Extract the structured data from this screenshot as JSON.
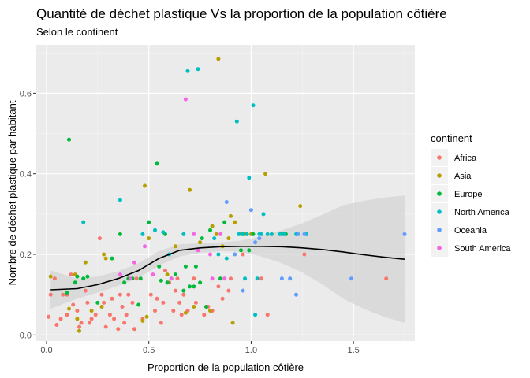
{
  "chart_data": {
    "type": "scatter",
    "title": "Quantité de déchet plastique Vs la proportion de la population côtière",
    "subtitle": "Selon le continent",
    "xlabel": "Proportion de la population côtière",
    "ylabel": "Nombre de déchet plastique par habitant",
    "xlim": [
      -0.05,
      1.8
    ],
    "ylim": [
      -0.015,
      0.72
    ],
    "x_ticks": [
      0.0,
      0.5,
      1.0,
      1.5
    ],
    "x_tick_labels": [
      "0.0",
      "0.5",
      "1.0",
      "1.5"
    ],
    "y_ticks": [
      0.0,
      0.2,
      0.4,
      0.6
    ],
    "y_tick_labels": [
      "0.0",
      "0.2",
      "0.4",
      "0.6"
    ],
    "grid": true,
    "legend": {
      "title": "continent",
      "placement": "right",
      "entries": [
        "Africa",
        "Asia",
        "Europe",
        "North America",
        "Oceania",
        "South America"
      ]
    },
    "colors": {
      "Africa": "#F8766D",
      "Asia": "#B79F00",
      "Europe": "#00BA38",
      "North America": "#00BFC4",
      "Oceania": "#619CFF",
      "South America": "#F564E3",
      "smooth": "#000000",
      "ribbon": "#cfcfcf",
      "panel": "#ebebeb"
    },
    "series": [
      {
        "name": "Africa",
        "points": [
          [
            0.01,
            0.045
          ],
          [
            0.02,
            0.1
          ],
          [
            0.04,
            0.14
          ],
          [
            0.05,
            0.025
          ],
          [
            0.07,
            0.04
          ],
          [
            0.08,
            0.1
          ],
          [
            0.1,
            0.05
          ],
          [
            0.1,
            0.1
          ],
          [
            0.12,
            0.15
          ],
          [
            0.13,
            0.075
          ],
          [
            0.15,
            0.06
          ],
          [
            0.16,
            0.02
          ],
          [
            0.17,
            0.03
          ],
          [
            0.19,
            0.11
          ],
          [
            0.2,
            0.08
          ],
          [
            0.21,
            0.03
          ],
          [
            0.22,
            0.04
          ],
          [
            0.24,
            0.05
          ],
          [
            0.26,
            0.24
          ],
          [
            0.27,
            0.1
          ],
          [
            0.28,
            0.08
          ],
          [
            0.29,
            0.02
          ],
          [
            0.31,
            0.05
          ],
          [
            0.32,
            0.09
          ],
          [
            0.33,
            0.04
          ],
          [
            0.35,
            0.015
          ],
          [
            0.36,
            0.1
          ],
          [
            0.37,
            0.07
          ],
          [
            0.38,
            0.03
          ],
          [
            0.39,
            0.05
          ],
          [
            0.4,
            0.1
          ],
          [
            0.42,
            0.08
          ],
          [
            0.43,
            0.015
          ],
          [
            0.44,
            0.14
          ],
          [
            0.47,
            0.04
          ],
          [
            0.51,
            0.1
          ],
          [
            0.53,
            0.06
          ],
          [
            0.54,
            0.09
          ],
          [
            0.56,
            0.03
          ],
          [
            0.57,
            0.08
          ],
          [
            0.58,
            0.16
          ],
          [
            0.6,
            0.13
          ],
          [
            0.62,
            0.06
          ],
          [
            0.63,
            0.11
          ],
          [
            0.64,
            0.14
          ],
          [
            0.65,
            0.08
          ],
          [
            0.66,
            0.05
          ],
          [
            0.67,
            0.1
          ],
          [
            0.69,
            0.06
          ],
          [
            0.72,
            0.14
          ],
          [
            0.73,
            0.08
          ],
          [
            0.77,
            0.05
          ],
          [
            0.79,
            0.07
          ],
          [
            0.81,
            0.06
          ],
          [
            0.84,
            0.12
          ],
          [
            0.86,
            0.09
          ],
          [
            0.89,
            0.11
          ],
          [
            0.9,
            0.14
          ],
          [
            0.96,
            0.2
          ],
          [
            1.05,
            0.14
          ],
          [
            1.08,
            0.05
          ],
          [
            1.26,
            0.2
          ],
          [
            1.66,
            0.14
          ]
        ]
      },
      {
        "name": "Asia",
        "points": [
          [
            0.02,
            0.145
          ],
          [
            0.11,
            0.065
          ],
          [
            0.14,
            0.15
          ],
          [
            0.15,
            0.04
          ],
          [
            0.16,
            0.01
          ],
          [
            0.19,
            0.18
          ],
          [
            0.22,
            0.06
          ],
          [
            0.27,
            0.07
          ],
          [
            0.28,
            0.2
          ],
          [
            0.29,
            0.19
          ],
          [
            0.47,
            0.035
          ],
          [
            0.48,
            0.37
          ],
          [
            0.49,
            0.045
          ],
          [
            0.5,
            0.24
          ],
          [
            0.59,
            0.15
          ],
          [
            0.63,
            0.22
          ],
          [
            0.68,
            0.055
          ],
          [
            0.7,
            0.36
          ],
          [
            0.72,
            0.07
          ],
          [
            0.75,
            0.23
          ],
          [
            0.8,
            0.06
          ],
          [
            0.81,
            0.27
          ],
          [
            0.83,
            0.25
          ],
          [
            0.84,
            0.685
          ],
          [
            0.86,
            0.22
          ],
          [
            0.89,
            0.24
          ],
          [
            0.9,
            0.295
          ],
          [
            0.91,
            0.03
          ],
          [
            0.92,
            0.28
          ],
          [
            0.95,
            0.25
          ],
          [
            0.97,
            0.25
          ],
          [
            1.0,
            0.25
          ],
          [
            1.07,
            0.4
          ],
          [
            1.1,
            0.25
          ],
          [
            1.24,
            0.32
          ]
        ]
      },
      {
        "name": "Europe",
        "points": [
          [
            0.1,
            0.105
          ],
          [
            0.11,
            0.485
          ],
          [
            0.14,
            0.13
          ],
          [
            0.15,
            0.145
          ],
          [
            0.18,
            0.14
          ],
          [
            0.2,
            0.145
          ],
          [
            0.25,
            0.08
          ],
          [
            0.32,
            0.19
          ],
          [
            0.36,
            0.25
          ],
          [
            0.38,
            0.13
          ],
          [
            0.4,
            0.14
          ],
          [
            0.42,
            0.14
          ],
          [
            0.45,
            0.075
          ],
          [
            0.46,
            0.14
          ],
          [
            0.5,
            0.28
          ],
          [
            0.54,
            0.425
          ],
          [
            0.55,
            0.17
          ],
          [
            0.56,
            0.135
          ],
          [
            0.58,
            0.25
          ],
          [
            0.59,
            0.13
          ],
          [
            0.61,
            0.14
          ],
          [
            0.63,
            0.15
          ],
          [
            0.67,
            0.11
          ],
          [
            0.68,
            0.17
          ],
          [
            0.7,
            0.12
          ],
          [
            0.72,
            0.12
          ],
          [
            0.73,
            0.17
          ],
          [
            0.75,
            0.13
          ],
          [
            0.76,
            0.24
          ],
          [
            0.78,
            0.07
          ],
          [
            0.8,
            0.26
          ],
          [
            0.85,
            0.14
          ],
          [
            0.87,
            0.28
          ],
          [
            0.95,
            0.21
          ],
          [
            0.96,
            0.25
          ],
          [
            0.99,
            0.21
          ],
          [
            1.01,
            0.25
          ],
          [
            1.15,
            0.25
          ],
          [
            1.17,
            0.25
          ]
        ]
      },
      {
        "name": "North America",
        "points": [
          [
            0.18,
            0.28
          ],
          [
            0.36,
            0.335
          ],
          [
            0.47,
            0.25
          ],
          [
            0.53,
            0.26
          ],
          [
            0.57,
            0.255
          ],
          [
            0.6,
            0.2
          ],
          [
            0.67,
            0.25
          ],
          [
            0.69,
            0.655
          ],
          [
            0.74,
            0.66
          ],
          [
            0.82,
            0.24
          ],
          [
            0.84,
            0.2
          ],
          [
            0.88,
            0.19
          ],
          [
            0.93,
            0.53
          ],
          [
            0.94,
            0.25
          ],
          [
            0.96,
            0.25
          ],
          [
            0.97,
            0.14
          ],
          [
            0.98,
            0.25
          ],
          [
            0.99,
            0.39
          ],
          [
            1.01,
            0.57
          ],
          [
            1.02,
            0.05
          ],
          [
            1.03,
            0.14
          ],
          [
            1.04,
            0.25
          ],
          [
            1.05,
            0.25
          ],
          [
            1.06,
            0.3
          ],
          [
            1.08,
            0.25
          ],
          [
            1.1,
            0.25
          ],
          [
            1.14,
            0.25
          ],
          [
            1.16,
            0.25
          ],
          [
            1.22,
            0.25
          ],
          [
            1.27,
            0.25
          ]
        ]
      },
      {
        "name": "Oceania",
        "points": [
          [
            0.88,
            0.33
          ],
          [
            0.92,
            0.2
          ],
          [
            0.96,
            0.11
          ],
          [
            1.0,
            0.31
          ],
          [
            1.02,
            0.23
          ],
          [
            1.04,
            0.24
          ],
          [
            1.15,
            0.14
          ],
          [
            1.19,
            0.14
          ],
          [
            1.22,
            0.1
          ],
          [
            1.23,
            0.25
          ],
          [
            1.26,
            0.25
          ],
          [
            1.49,
            0.14
          ],
          [
            1.75,
            0.25
          ]
        ]
      },
      {
        "name": "South America",
        "points": [
          [
            0.36,
            0.15
          ],
          [
            0.41,
            0.14
          ],
          [
            0.43,
            0.18
          ],
          [
            0.48,
            0.22
          ],
          [
            0.52,
            0.15
          ],
          [
            0.61,
            0.14
          ],
          [
            0.68,
            0.585
          ],
          [
            0.72,
            0.25
          ],
          [
            0.74,
            0.21
          ],
          [
            0.8,
            0.2
          ],
          [
            0.81,
            0.14
          ],
          [
            0.85,
            0.25
          ],
          [
            0.87,
            0.14
          ]
        ]
      }
    ],
    "smooth_line": {
      "x": [
        0.02,
        0.15,
        0.25,
        0.35,
        0.45,
        0.55,
        0.65,
        0.75,
        0.85,
        0.95,
        1.05,
        1.15,
        1.25,
        1.35,
        1.45,
        1.55,
        1.65,
        1.75
      ],
      "y": [
        0.112,
        0.115,
        0.125,
        0.14,
        0.16,
        0.19,
        0.21,
        0.216,
        0.219,
        0.22,
        0.22,
        0.219,
        0.216,
        0.212,
        0.206,
        0.199,
        0.193,
        0.188
      ],
      "lower": [
        0.065,
        0.09,
        0.105,
        0.122,
        0.142,
        0.172,
        0.195,
        0.204,
        0.208,
        0.206,
        0.195,
        0.178,
        0.155,
        0.125,
        0.09,
        0.065,
        0.045,
        0.03
      ],
      "upper": [
        0.16,
        0.14,
        0.145,
        0.158,
        0.178,
        0.208,
        0.225,
        0.228,
        0.23,
        0.234,
        0.245,
        0.26,
        0.277,
        0.299,
        0.322,
        0.333,
        0.341,
        0.346
      ]
    }
  }
}
